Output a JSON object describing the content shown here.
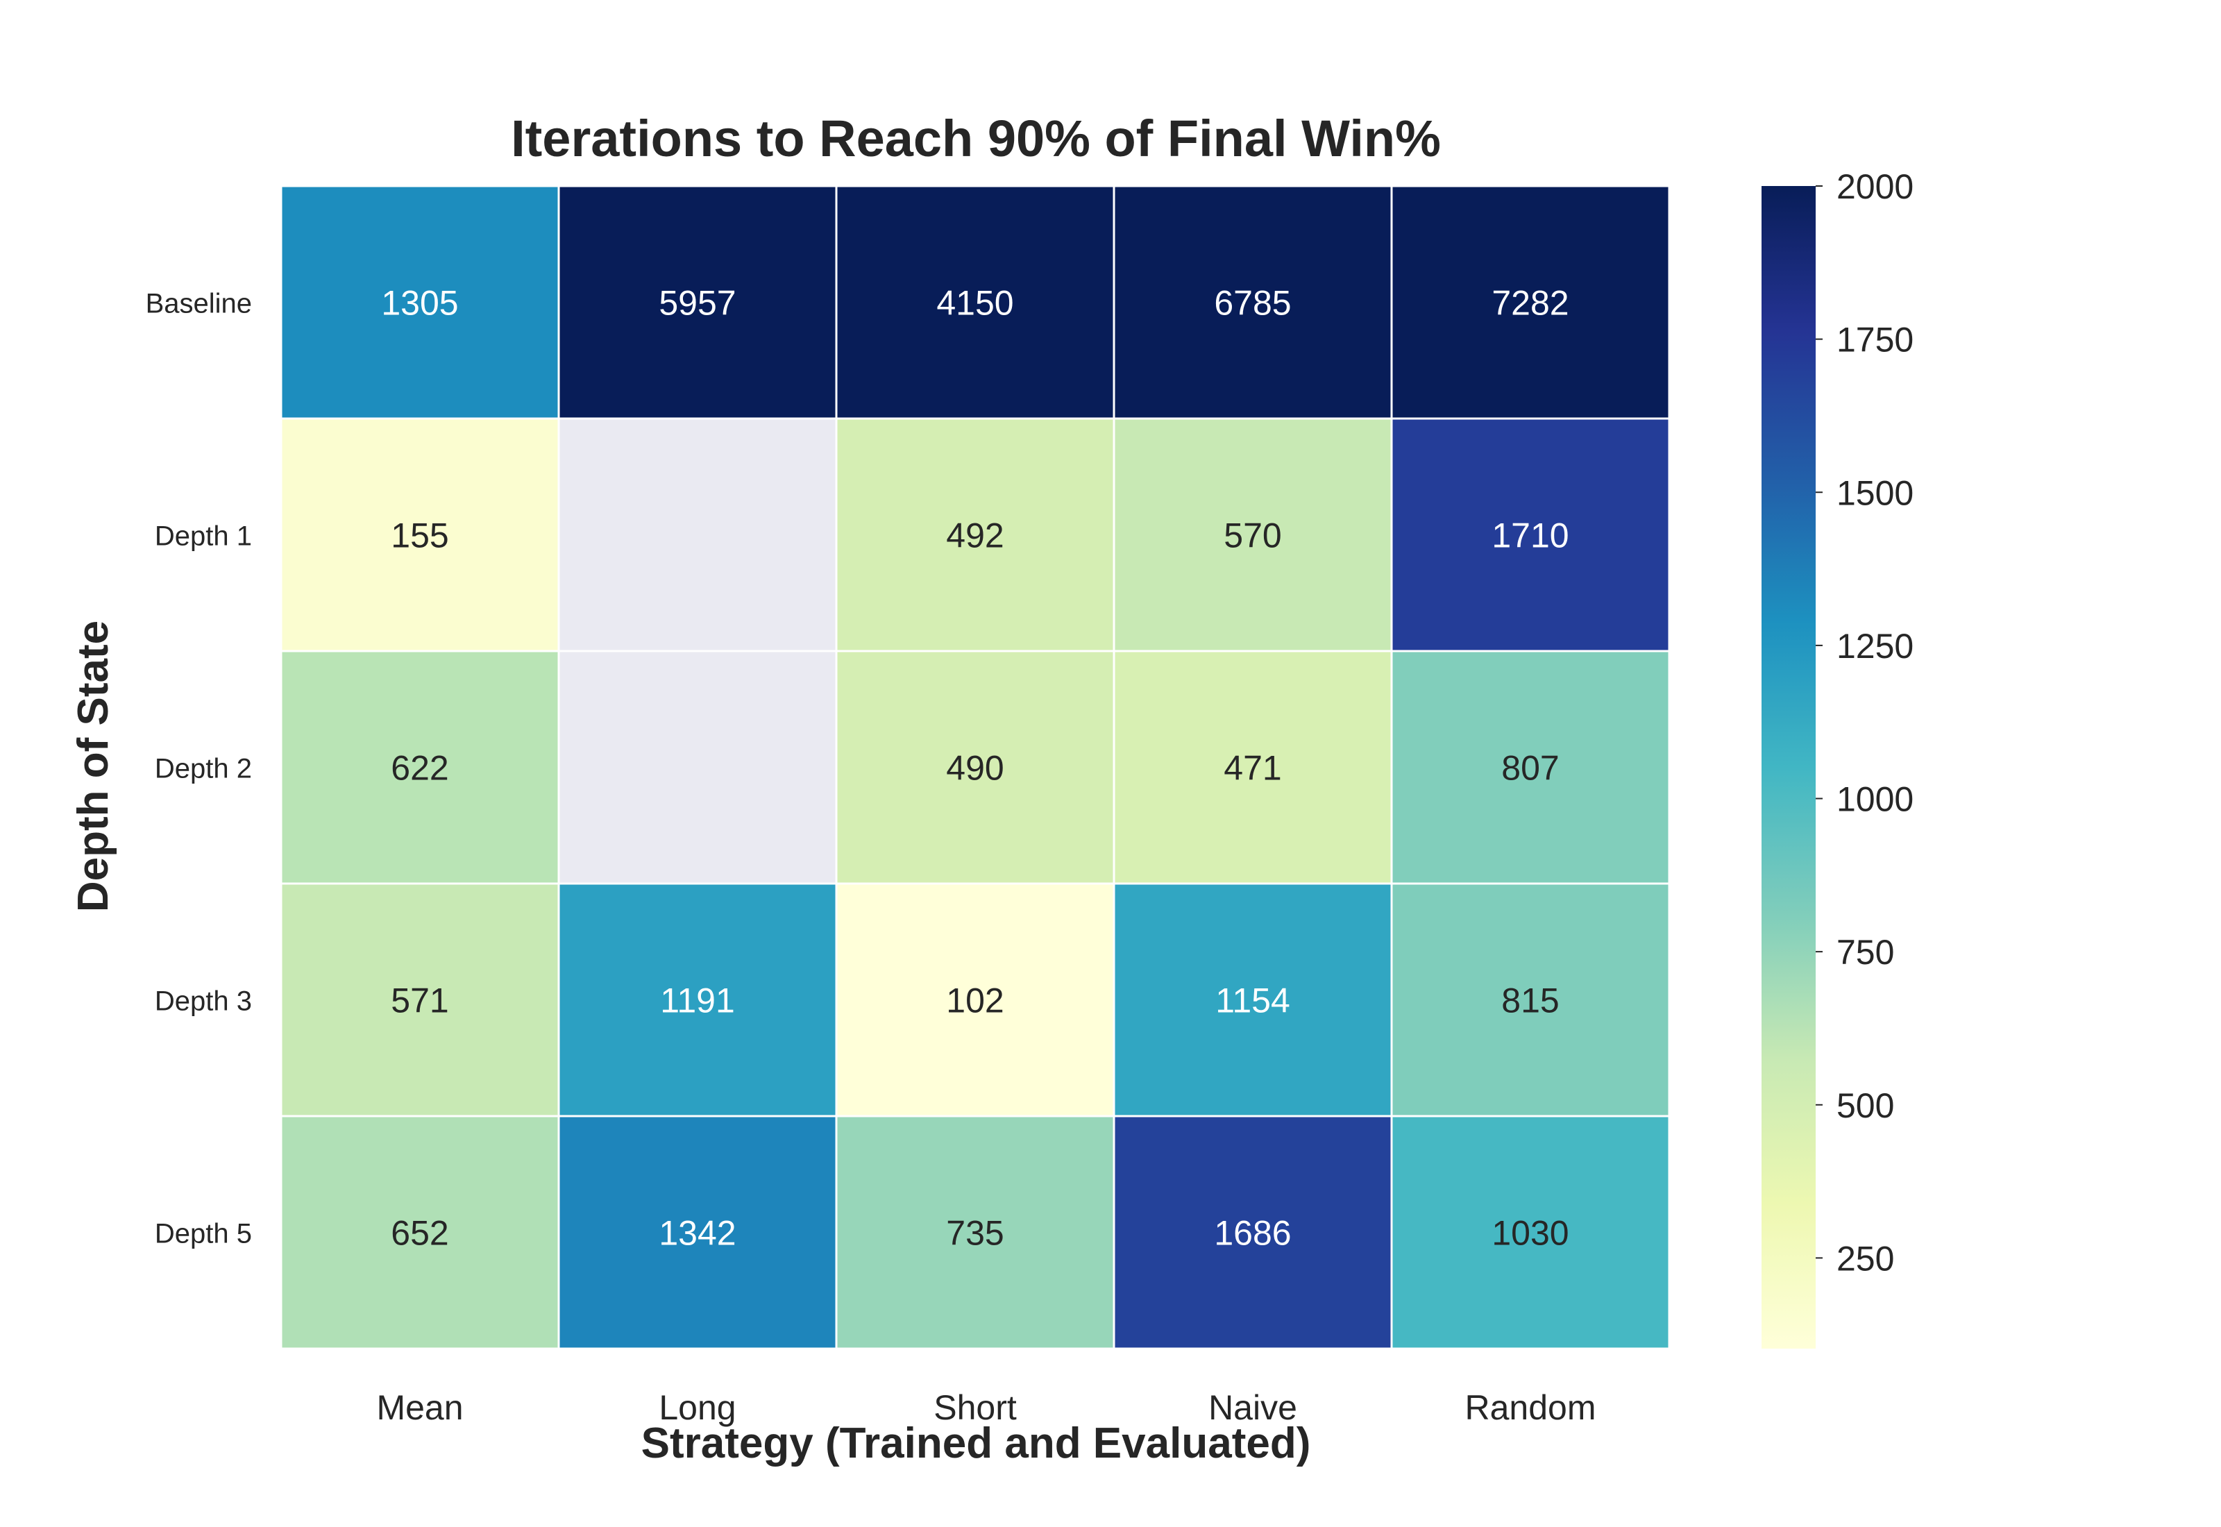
{
  "chart_data": {
    "type": "heatmap",
    "title": "Iterations to Reach 90% of Final Win%",
    "xlabel": "Strategy (Trained and Evaluated)",
    "ylabel": "Depth of State",
    "x_categories": [
      "Mean",
      "Long",
      "Short",
      "Naive",
      "Random"
    ],
    "y_categories": [
      "Baseline",
      "Depth 1",
      "Depth 2",
      "Depth 3",
      "Depth 5"
    ],
    "values": [
      [
        1305,
        5957,
        4150,
        6785,
        7282
      ],
      [
        155,
        null,
        492,
        570,
        1710
      ],
      [
        622,
        null,
        490,
        471,
        807
      ],
      [
        571,
        1191,
        102,
        1154,
        815
      ],
      [
        652,
        1342,
        735,
        1686,
        1030
      ]
    ],
    "colorbar": {
      "min": 102,
      "max": 2000,
      "ticks": [
        250,
        500,
        750,
        1000,
        1250,
        1500,
        1750,
        2000
      ],
      "colormap": "YlGnBu"
    },
    "missing_color": "#eaeaf2",
    "grid": false,
    "legend": "colorbar-right"
  }
}
